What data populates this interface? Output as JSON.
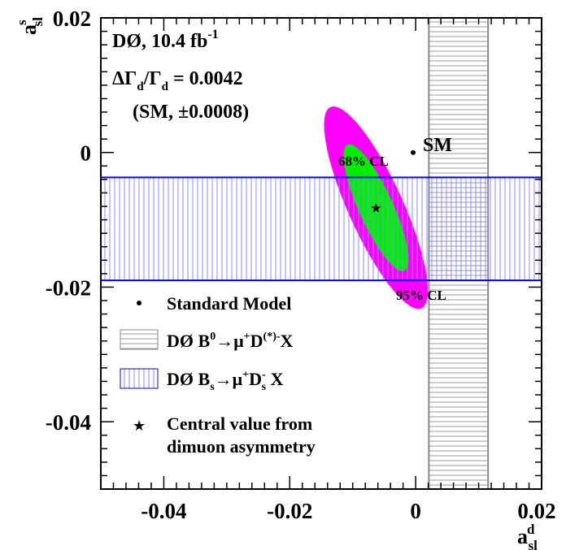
{
  "chart_data": {
    "type": "contour",
    "xlabel": "a_sl^d",
    "ylabel": "a_sl^s",
    "xlim": [
      -0.05,
      0.02
    ],
    "ylim": [
      -0.05,
      0.02
    ],
    "x_ticks": [
      -0.04,
      -0.02,
      0,
      0.02
    ],
    "y_ticks": [
      0.02,
      0,
      -0.02,
      -0.04
    ],
    "x_tick_labels": [
      "-0.04",
      "-0.02",
      "0",
      "0.02"
    ],
    "y_tick_labels": [
      "0.02",
      "0",
      "-0.02",
      "-0.04"
    ],
    "annotations": {
      "experiment": "DØ, 10.4 fb",
      "experiment_sup": "-1",
      "dgamma_line": "ΔΓ/Γ = 0.0042",
      "sm_error": "(SM, ±0.0008)",
      "sm_label": "SM",
      "cl68": "68% CL",
      "cl95": "95% CL"
    },
    "central_value": {
      "x": -0.0063,
      "y": -0.0082
    },
    "standard_model": {
      "x": -0.0004,
      "y": 0.0
    },
    "contour_95": {
      "center": [
        -0.0063,
        -0.0082
      ],
      "semi_major": 0.0166,
      "semi_minor": 0.0043,
      "angle_deg": -64,
      "color": "#ff00ff"
    },
    "contour_68": {
      "center": [
        -0.0063,
        -0.0082
      ],
      "semi_major": 0.0104,
      "semi_minor": 0.0027,
      "angle_deg": -64,
      "color": "#00ee00"
    },
    "band_d": {
      "label": "DØ B⁰→μ⁺D⁽*⁾⁻X",
      "xmin": 0.0021,
      "xmax": 0.0115,
      "color": "#888888"
    },
    "band_s": {
      "label": "DØ Bs→μ⁺Ds⁻ X",
      "ymin": -0.019,
      "ymax": -0.0037,
      "color": "#0000ff"
    },
    "legend": [
      {
        "symbol": "dot",
        "text": "Standard Model"
      },
      {
        "symbol": "box-gray",
        "text": "DØ B⁰→μ⁺D⁽*⁾⁻X"
      },
      {
        "symbol": "box-blue",
        "text": "DØ Bs→μ⁺Ds⁻ X"
      },
      {
        "symbol": "star",
        "text": "Central value from",
        "text2": "dimuon asymmetry"
      }
    ],
    "grid": false,
    "legend_position": "lower-left"
  }
}
